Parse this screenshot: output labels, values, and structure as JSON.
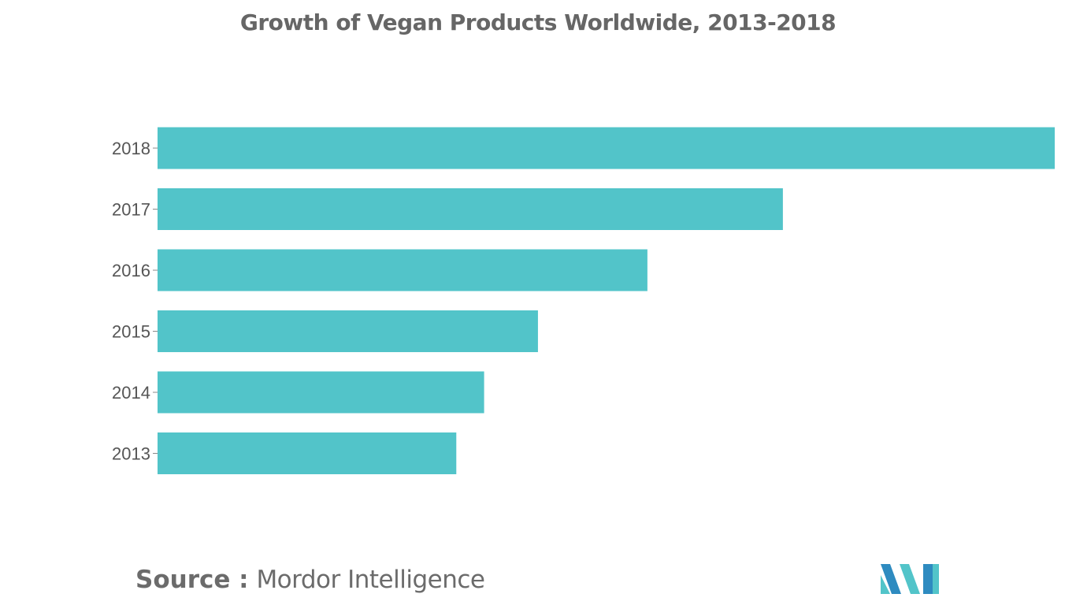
{
  "chart_data": {
    "type": "bar",
    "orientation": "horizontal",
    "title": "Growth of Vegan Products Worldwide, 2013-2018",
    "categories": [
      "2018",
      "2017",
      "2016",
      "2015",
      "2014",
      "2013"
    ],
    "values": [
      100,
      69.7,
      54.6,
      42.4,
      36.4,
      33.3
    ],
    "xlabel": "",
    "ylabel": "",
    "xlim": [
      0,
      100
    ],
    "grid": false,
    "legend": "none",
    "bar_color": "#52c4c9"
  },
  "source": {
    "label": "Source :",
    "value": "Mordor Intelligence"
  },
  "logo": {
    "icon": "mordor-intelligence-logo-icon",
    "colors": [
      "#2e8bc0",
      "#52c4c9"
    ]
  }
}
